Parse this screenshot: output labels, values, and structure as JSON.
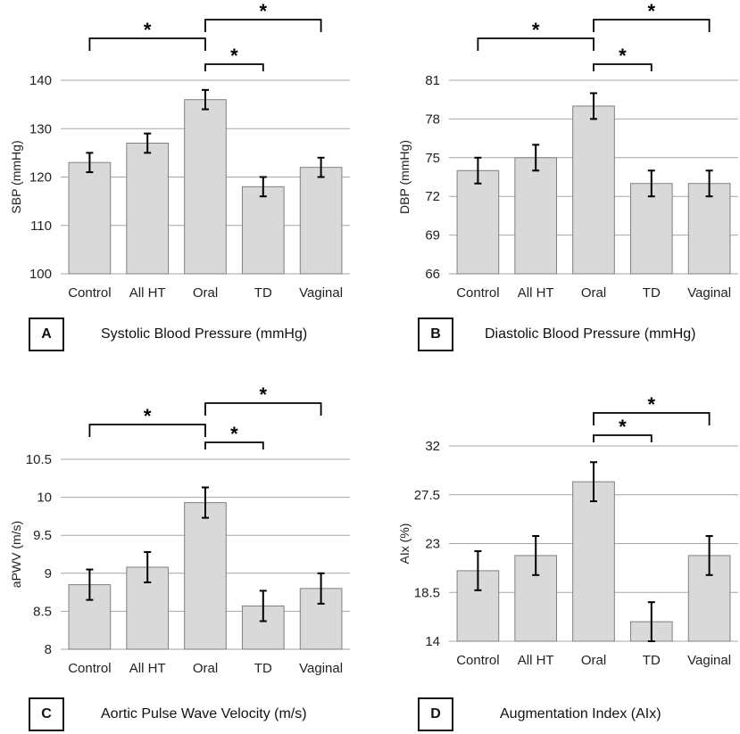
{
  "chart_data": [
    {
      "type": "bar",
      "panel_label": "A",
      "title": "Systolic Blood Pressure (mmHg)",
      "ylabel": "SBP (mmHg)",
      "xlabel": "",
      "categories": [
        "Control",
        "All HT",
        "Oral",
        "TD",
        "Vaginal"
      ],
      "values": [
        123,
        127,
        136,
        118,
        122
      ],
      "errors": [
        2,
        2,
        2,
        2,
        2
      ],
      "ylim": [
        100,
        140
      ],
      "yticks": [
        100,
        110,
        120,
        130,
        140
      ],
      "ytick_labels": [
        "100",
        "110",
        "120",
        "130",
        "140"
      ],
      "grid": true,
      "significance": [
        {
          "from": 0,
          "to": 2,
          "label": "*"
        },
        {
          "from": 2,
          "to": 3,
          "label": "*"
        },
        {
          "from": 2,
          "to": 4,
          "label": "*"
        }
      ]
    },
    {
      "type": "bar",
      "panel_label": "B",
      "title": "Diastolic Blood Pressure (mmHg)",
      "ylabel": "DBP (mmHg)",
      "xlabel": "",
      "categories": [
        "Control",
        "All HT",
        "Oral",
        "TD",
        "Vaginal"
      ],
      "values": [
        74,
        75,
        79,
        73,
        73
      ],
      "errors": [
        1,
        1,
        1,
        1,
        1
      ],
      "ylim": [
        66,
        81
      ],
      "yticks": [
        66,
        69,
        72,
        75,
        78,
        81
      ],
      "ytick_labels": [
        "66",
        "69",
        "72",
        "75",
        "78",
        "81"
      ],
      "grid": true,
      "significance": [
        {
          "from": 0,
          "to": 2,
          "label": "*"
        },
        {
          "from": 2,
          "to": 3,
          "label": "*"
        },
        {
          "from": 2,
          "to": 4,
          "label": "*"
        }
      ]
    },
    {
      "type": "bar",
      "panel_label": "C",
      "title": "Aortic Pulse Wave Velocity (m/s)",
      "ylabel": "aPWV (m/s)",
      "xlabel": "",
      "categories": [
        "Control",
        "All HT",
        "Oral",
        "TD",
        "Vaginal"
      ],
      "values": [
        8.85,
        9.08,
        9.93,
        8.57,
        8.8
      ],
      "errors": [
        0.2,
        0.2,
        0.2,
        0.2,
        0.2
      ],
      "ylim": [
        8,
        10.5
      ],
      "yticks": [
        8,
        8.5,
        9,
        9.5,
        10,
        10.5
      ],
      "ytick_labels": [
        "8",
        "8.5",
        "9",
        "9.5",
        "10",
        "10.5"
      ],
      "grid": true,
      "significance": [
        {
          "from": 0,
          "to": 2,
          "label": "*"
        },
        {
          "from": 2,
          "to": 3,
          "label": "*"
        },
        {
          "from": 2,
          "to": 4,
          "label": "*"
        }
      ]
    },
    {
      "type": "bar",
      "panel_label": "D",
      "title": "Augmentation Index (AIx)",
      "ylabel": "AIx (%)",
      "xlabel": "",
      "categories": [
        "Control",
        "All HT",
        "Oral",
        "TD",
        "Vaginal"
      ],
      "values": [
        20.5,
        21.9,
        28.7,
        15.8,
        21.9
      ],
      "errors": [
        1.8,
        1.8,
        1.8,
        1.8,
        1.8
      ],
      "ylim": [
        14,
        32
      ],
      "yticks": [
        14,
        18.5,
        23,
        27.5,
        32
      ],
      "ytick_labels": [
        "14",
        "18.5",
        "23",
        "27.5",
        "32"
      ],
      "grid": true,
      "significance": [
        {
          "from": 2,
          "to": 3,
          "label": "*"
        },
        {
          "from": 2,
          "to": 4,
          "label": "*"
        }
      ]
    }
  ],
  "colors": {
    "bar_fill": "#d9d9d9",
    "bar_stroke": "#7f7f7f",
    "grid": "#a6a6a6",
    "text": "#222222",
    "bracket": "#000000"
  }
}
